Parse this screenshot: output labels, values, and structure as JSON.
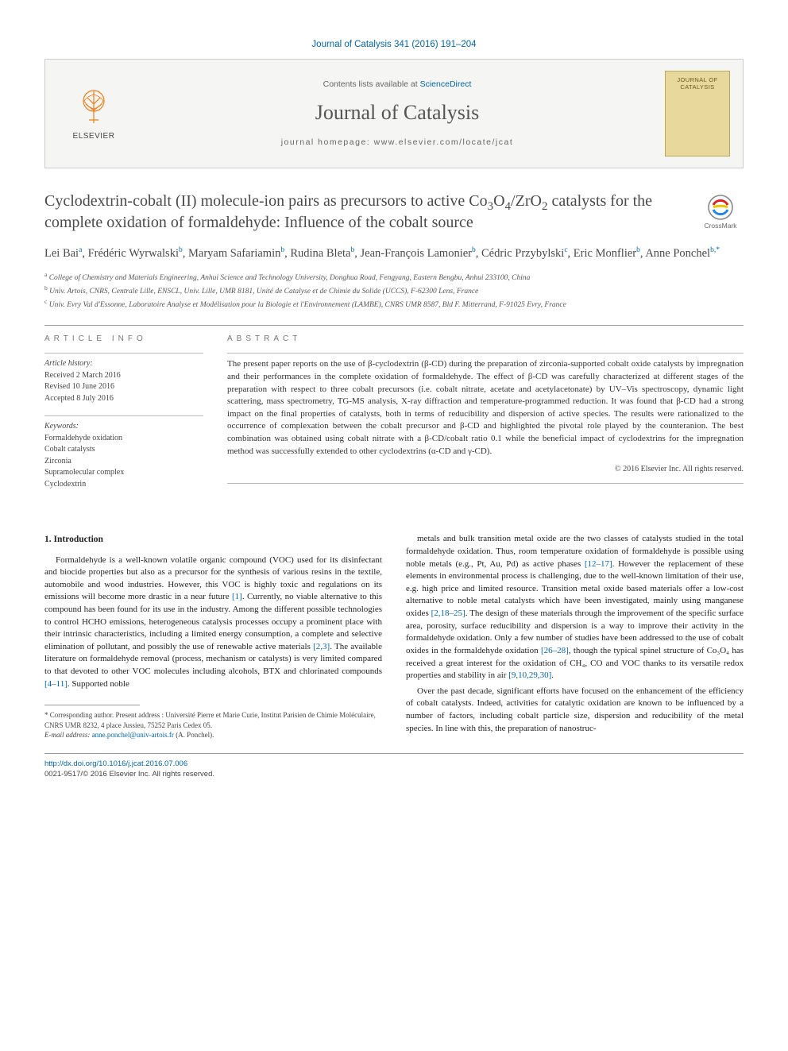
{
  "citation": "Journal of Catalysis 341 (2016) 191–204",
  "banner": {
    "contents_prefix": "Contents lists available at ",
    "contents_link": "ScienceDirect",
    "journal": "Journal of Catalysis",
    "homepage_prefix": "journal homepage: ",
    "homepage_url": "www.elsevier.com/locate/jcat",
    "publisher": "ELSEVIER",
    "cover_title": "JOURNAL OF CATALYSIS"
  },
  "crossmark_label": "CrossMark",
  "title_parts": {
    "p1": "Cyclodextrin-cobalt (II) molecule-ion pairs as precursors to active Co",
    "p2": "O",
    "p3": "/ZrO",
    "p4": " catalysts for the complete oxidation of formaldehyde: Influence of the cobalt source"
  },
  "authors": [
    {
      "name": "Lei Bai",
      "aff": "a"
    },
    {
      "name": "Frédéric Wyrwalski",
      "aff": "b"
    },
    {
      "name": "Maryam Safariamin",
      "aff": "b"
    },
    {
      "name": "Rudina Bleta",
      "aff": "b"
    },
    {
      "name": "Jean-François Lamonier",
      "aff": "b"
    },
    {
      "name": "Cédric Przybylski",
      "aff": "c"
    },
    {
      "name": "Eric Monflier",
      "aff": "b"
    },
    {
      "name": "Anne Ponchel",
      "aff": "b,",
      "star": true
    }
  ],
  "affiliations": [
    {
      "sup": "a",
      "text": "College of Chemistry and Materials Engineering, Anhui Science and Technology University, Donghua Road, Fengyang, Eastern Bengbu, Anhui 233100, China"
    },
    {
      "sup": "b",
      "text": "Univ. Artois, CNRS, Centrale Lille, ENSCL, Univ. Lille, UMR 8181, Unité de Catalyse et de Chimie du Solide (UCCS), F-62300 Lens, France"
    },
    {
      "sup": "c",
      "text": "Univ. Evry Val d'Essonne, Laboratoire Analyse et Modélisation pour la Biologie et l'Environnement (LAMBE), CNRS UMR 8587, Bld F. Mitterrand, F-91025 Evry, France"
    }
  ],
  "info": {
    "heading": "ARTICLE INFO",
    "history_label": "Article history:",
    "history": [
      "Received 2 March 2016",
      "Revised 10 June 2016",
      "Accepted 8 July 2016"
    ],
    "keywords_label": "Keywords:",
    "keywords": [
      "Formaldehyde oxidation",
      "Cobalt catalysts",
      "Zirconia",
      "Supramolecular complex",
      "Cyclodextrin"
    ]
  },
  "abstract": {
    "heading": "ABSTRACT",
    "text": "The present paper reports on the use of β-cyclodextrin (β-CD) during the preparation of zirconia-supported cobalt oxide catalysts by impregnation and their performances in the complete oxidation of formaldehyde. The effect of β-CD was carefully characterized at different stages of the preparation with respect to three cobalt precursors (i.e. cobalt nitrate, acetate and acetylacetonate) by UV–Vis spectroscopy, dynamic light scattering, mass spectrometry, TG-MS analysis, X-ray diffraction and temperature-programmed reduction. It was found that β-CD had a strong impact on the final properties of catalysts, both in terms of reducibility and dispersion of active species. The results were rationalized to the occurrence of complexation between the cobalt precursor and β-CD and highlighted the pivotal role played by the counteranion. The best combination was obtained using cobalt nitrate with a β-CD/cobalt ratio 0.1 while the beneficial impact of cyclodextrins for the impregnation method was successfully extended to other cyclodextrins (α-CD and γ-CD).",
    "copyright": "© 2016 Elsevier Inc. All rights reserved."
  },
  "body": {
    "heading": "1. Introduction",
    "left": [
      "Formaldehyde is a well-known volatile organic compound (VOC) used for its disinfectant and biocide properties but also as a precursor for the synthesis of various resins in the textile, automobile and wood industries. However, this VOC is highly toxic and regulations on its emissions will become more drastic in a near future [1]. Currently, no viable alternative to this compound has been found for its use in the industry. Among the different possible technologies to control HCHO emissions, heterogeneous catalysis processes occupy a prominent place with their intrinsic characteristics, including a limited energy consumption, a complete and selective elimination of pollutant, and possibly the use of renewable active materials [2,3]. The available literature on formaldehyde removal (process, mechanism or catalysts) is very limited compared to that devoted to other VOC molecules including alcohols, BTX and chlorinated compounds [4–11]. Supported noble"
    ],
    "right": [
      "metals and bulk transition metal oxide are the two classes of catalysts studied in the total formaldehyde oxidation. Thus, room temperature oxidation of formaldehyde is possible using noble metals (e.g., Pt, Au, Pd) as active phases [12–17]. However the replacement of these elements in environmental process is challenging, due to the well-known limitation of their use, e.g. high price and limited resource. Transition metal oxide based materials offer a low-cost alternative to noble metal catalysts which have been investigated, mainly using manganese oxides [2,18–25]. The design of these materials through the improvement of the specific surface area, porosity, surface reducibility and dispersion is a way to improve their activity in the formaldehyde oxidation. Only a few number of studies have been addressed to the use of cobalt oxides in the formaldehyde oxidation [26–28], though the typical spinel structure of Co₃O₄ has received a great interest for the oxidation of CH₄, CO and VOC thanks to its versatile redox properties and stability in air [9,10,29,30].",
      "Over the past decade, significant efforts have focused on the enhancement of the efficiency of cobalt catalysts. Indeed, activities for catalytic oxidation are known to be influenced by a number of factors, including cobalt particle size, dispersion and reducibility of the metal species. In line with this, the preparation of nanostruc-"
    ]
  },
  "footnote": {
    "corr": "* Corresponding author. Present address : Université Pierre et Marie Curie, Institut Parisien de Chimie Moléculaire, CNRS UMR 8232, 4 place Jussieu, 75252 Paris Cedex 05.",
    "email_label": "E-mail address: ",
    "email": "anne.ponchel@univ-artois.fr",
    "email_suffix": " (A. Ponchel)."
  },
  "footer": {
    "doi": "http://dx.doi.org/10.1016/j.jcat.2016.07.006",
    "issn": "0021-9517/© 2016 Elsevier Inc. All rights reserved."
  },
  "colors": {
    "link": "#0066aa",
    "text": "#333333",
    "heading": "#4a4a4a",
    "rule": "#999999",
    "banner_bg": "#f5f5f3",
    "cover_bg": "#e8d89c",
    "elsevier_orange": "#ee7f1a"
  }
}
